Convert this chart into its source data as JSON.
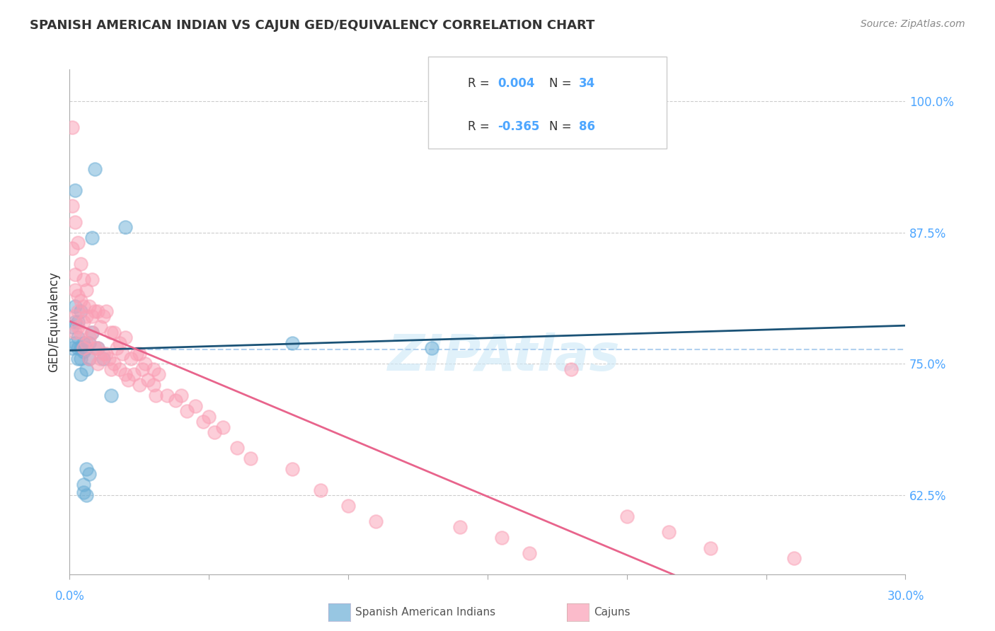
{
  "title": "SPANISH AMERICAN INDIAN VS CAJUN GED/EQUIVALENCY CORRELATION CHART",
  "source": "Source: ZipAtlas.com",
  "ylabel": "GED/Equivalency",
  "yticks": [
    62.5,
    75.0,
    87.5,
    100.0
  ],
  "ytick_labels": [
    "62.5%",
    "75.0%",
    "87.5%",
    "100.0%"
  ],
  "xmin": 0.0,
  "xmax": 0.3,
  "ymin": 55.0,
  "ymax": 103.0,
  "legend1_r": "0.004",
  "legend1_n": "34",
  "legend2_r": "-0.365",
  "legend2_n": "86",
  "blue_color": "#6baed6",
  "pink_color": "#fa9fb5",
  "line_blue": "#1a5276",
  "line_pink": "#e8648c",
  "dashed_color": "#aaccee",
  "watermark": "ZIPAtlas",
  "tick_color": "#4da6ff",
  "spanish_x": [
    0.001,
    0.001,
    0.002,
    0.002,
    0.002,
    0.002,
    0.003,
    0.003,
    0.003,
    0.003,
    0.004,
    0.004,
    0.004,
    0.004,
    0.005,
    0.005,
    0.005,
    0.005,
    0.006,
    0.006,
    0.006,
    0.006,
    0.007,
    0.007,
    0.007,
    0.008,
    0.008,
    0.009,
    0.01,
    0.012,
    0.015,
    0.02,
    0.08,
    0.13
  ],
  "spanish_y": [
    76.5,
    78.5,
    77.0,
    79.0,
    80.5,
    91.5,
    75.5,
    76.5,
    77.5,
    79.0,
    74.0,
    75.5,
    76.5,
    80.0,
    62.8,
    63.5,
    76.2,
    77.0,
    62.5,
    65.0,
    74.5,
    76.5,
    64.5,
    75.5,
    77.0,
    78.0,
    87.0,
    93.5,
    76.5,
    75.5,
    72.0,
    88.0,
    77.0,
    76.5
  ],
  "cajun_x": [
    0.001,
    0.001,
    0.001,
    0.002,
    0.002,
    0.002,
    0.002,
    0.002,
    0.003,
    0.003,
    0.003,
    0.003,
    0.004,
    0.004,
    0.004,
    0.005,
    0.005,
    0.005,
    0.005,
    0.006,
    0.006,
    0.006,
    0.007,
    0.007,
    0.007,
    0.008,
    0.008,
    0.008,
    0.009,
    0.009,
    0.01,
    0.01,
    0.01,
    0.011,
    0.011,
    0.012,
    0.012,
    0.013,
    0.013,
    0.014,
    0.015,
    0.015,
    0.016,
    0.016,
    0.017,
    0.018,
    0.018,
    0.019,
    0.02,
    0.02,
    0.021,
    0.022,
    0.023,
    0.024,
    0.025,
    0.025,
    0.026,
    0.027,
    0.028,
    0.03,
    0.03,
    0.031,
    0.032,
    0.035,
    0.038,
    0.04,
    0.042,
    0.045,
    0.048,
    0.05,
    0.052,
    0.055,
    0.06,
    0.065,
    0.08,
    0.09,
    0.1,
    0.11,
    0.14,
    0.155,
    0.165,
    0.18,
    0.2,
    0.215,
    0.23,
    0.26
  ],
  "cajun_y": [
    97.5,
    86.0,
    90.0,
    78.0,
    79.5,
    82.0,
    83.5,
    88.5,
    78.5,
    80.0,
    81.5,
    86.5,
    78.0,
    81.0,
    84.5,
    76.5,
    79.0,
    80.5,
    83.0,
    77.0,
    79.5,
    82.0,
    75.5,
    77.5,
    80.5,
    78.0,
    79.5,
    83.0,
    76.5,
    80.0,
    75.0,
    76.5,
    80.0,
    75.5,
    78.5,
    76.0,
    79.5,
    76.0,
    80.0,
    75.5,
    74.5,
    78.0,
    75.0,
    78.0,
    76.5,
    74.5,
    77.0,
    76.0,
    74.0,
    77.5,
    73.5,
    75.5,
    74.0,
    76.0,
    73.0,
    76.0,
    74.5,
    75.0,
    73.5,
    73.0,
    74.5,
    72.0,
    74.0,
    72.0,
    71.5,
    72.0,
    70.5,
    71.0,
    69.5,
    70.0,
    68.5,
    69.0,
    67.0,
    66.0,
    65.0,
    63.0,
    61.5,
    60.0,
    59.5,
    58.5,
    57.0,
    74.5,
    60.5,
    59.0,
    57.5,
    56.5
  ]
}
